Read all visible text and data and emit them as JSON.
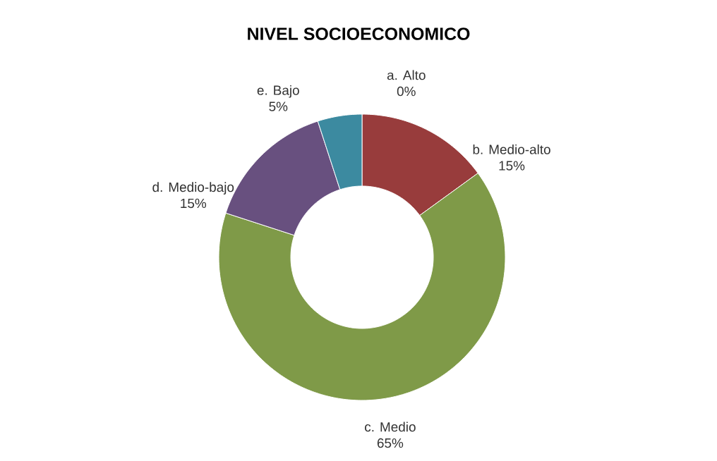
{
  "chart_data": {
    "type": "donut",
    "title": "NIVEL SOCIOECONOMICO",
    "categories": [
      "a. Alto",
      "b. Medio-alto",
      "c. Medio",
      "d. Medio-bajo",
      "e. Bajo"
    ],
    "values": [
      0,
      15,
      65,
      15,
      5
    ],
    "value_labels": [
      "0%",
      "15%",
      "65%",
      "15%",
      "5%"
    ],
    "colors": [
      "#c0504d",
      "#983c3c",
      "#7f9a48",
      "#68507f",
      "#3c8aa0"
    ]
  }
}
